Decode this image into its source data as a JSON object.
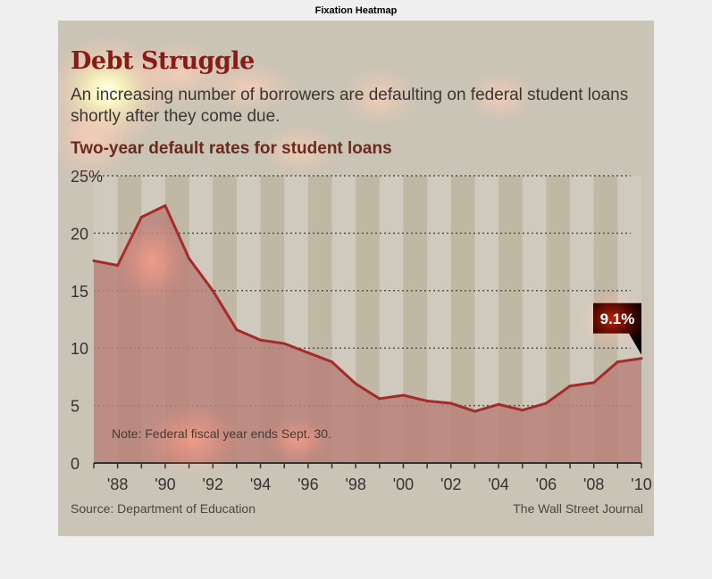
{
  "figure_title": "Fixation Heatmap",
  "headline": "Debt Struggle",
  "subtitle": "An increasing number of borrowers are defaulting on federal student loans shortly after they come due.",
  "chart_title": "Two-year default rates for student loans",
  "note": "Note: Federal fiscal year ends Sept. 30.",
  "source": "Source: Department of Education",
  "credit": "The Wall Street Journal",
  "callout": {
    "label": "9.1%",
    "year": 2010,
    "value": 9.1
  },
  "colors": {
    "line": "#a52a2a",
    "area": "#b8837a",
    "callout_bg": "#000000",
    "headline": "#8b1a17"
  },
  "chart_data": {
    "type": "area",
    "title": "Two-year default rates for student loans",
    "xlabel": "",
    "ylabel": "",
    "x": [
      1987,
      1988,
      1989,
      1990,
      1991,
      1992,
      1993,
      1994,
      1995,
      1996,
      1997,
      1998,
      1999,
      2000,
      2001,
      2002,
      2003,
      2004,
      2005,
      2006,
      2007,
      2008,
      2009,
      2010
    ],
    "values": [
      17.6,
      17.2,
      21.4,
      22.4,
      17.8,
      15.0,
      11.6,
      10.7,
      10.4,
      9.6,
      8.8,
      6.9,
      5.6,
      5.9,
      5.4,
      5.2,
      4.5,
      5.1,
      4.6,
      5.2,
      6.7,
      7.0,
      8.8,
      9.1
    ],
    "ylim": [
      0,
      25
    ],
    "xlim": [
      1987,
      2010
    ],
    "yticks": [
      {
        "value": 0,
        "label": "0"
      },
      {
        "value": 5,
        "label": "5"
      },
      {
        "value": 10,
        "label": "10"
      },
      {
        "value": 15,
        "label": "15"
      },
      {
        "value": 20,
        "label": "20"
      },
      {
        "value": 25,
        "label": "25%"
      }
    ],
    "xticks": [
      {
        "value": 1988,
        "label": "'88"
      },
      {
        "value": 1990,
        "label": "'90"
      },
      {
        "value": 1992,
        "label": "'92"
      },
      {
        "value": 1994,
        "label": "'94"
      },
      {
        "value": 1996,
        "label": "'96"
      },
      {
        "value": 1998,
        "label": "'98"
      },
      {
        "value": 2000,
        "label": "'00"
      },
      {
        "value": 2002,
        "label": "'02"
      },
      {
        "value": 2004,
        "label": "'04"
      },
      {
        "value": 2006,
        "label": "'06"
      },
      {
        "value": 2008,
        "label": "'08"
      },
      {
        "value": 2010,
        "label": "'10"
      }
    ],
    "grid": true
  }
}
